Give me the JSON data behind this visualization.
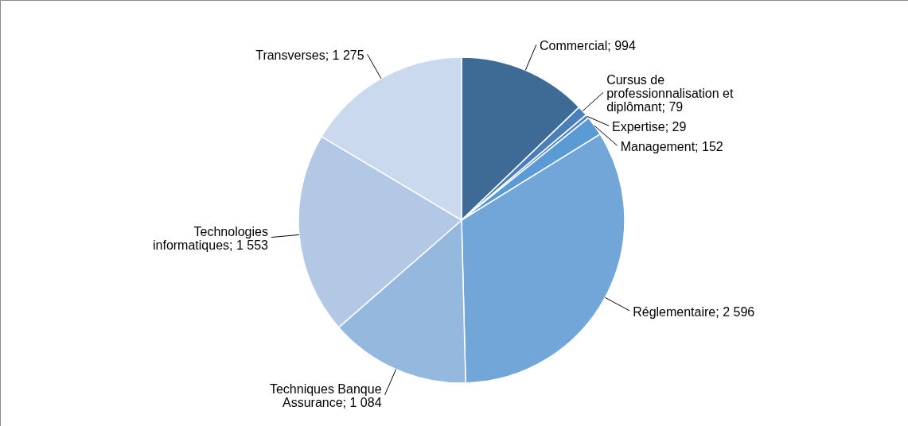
{
  "chart_data": {
    "type": "pie",
    "categories": [
      "Commercial",
      "Cursus de professionnalisation et diplômant",
      "Expertise",
      "Management",
      "Réglementaire",
      "Techniques Banque Assurance",
      "Technologies informatiques",
      "Transverses"
    ],
    "values": [
      994,
      79,
      29,
      152,
      2596,
      1084,
      1553,
      1275
    ],
    "value_labels": [
      "994",
      "79",
      "29",
      "152",
      "2 596",
      "1 084",
      "1 553",
      "1 275"
    ],
    "colors": [
      "#3e6a96",
      "#4a7fb8",
      "#4f86c6",
      "#5b9bd5",
      "#72a6d8",
      "#95b8df",
      "#b2c8e4",
      "#cad9ee"
    ]
  }
}
